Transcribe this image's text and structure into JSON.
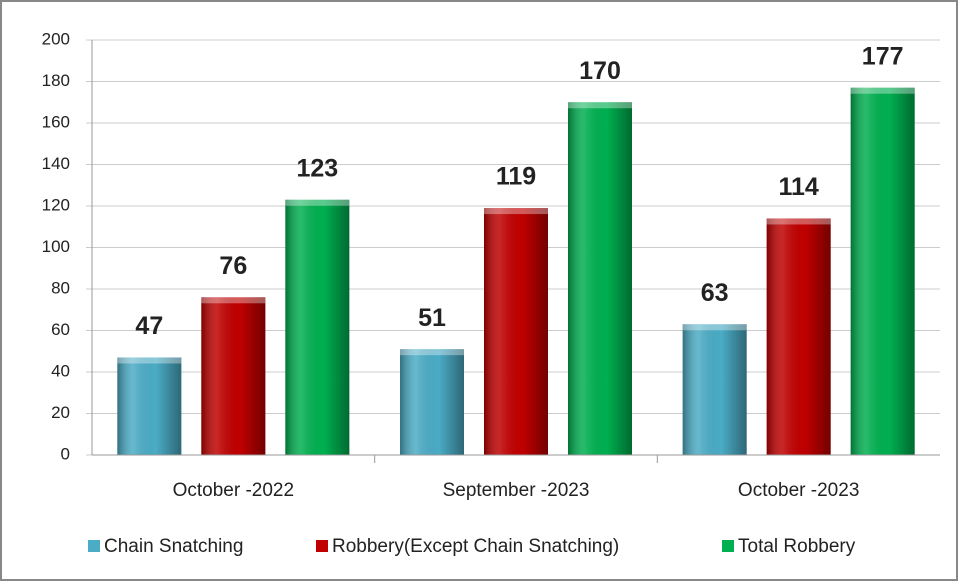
{
  "chart_data": {
    "type": "bar",
    "categories": [
      "October -2022",
      "September -2023",
      "October -2023"
    ],
    "series": [
      {
        "name": "Chain Snatching",
        "color": "#4bacc6",
        "values": [
          47,
          51,
          63
        ]
      },
      {
        "name": "Robbery(Except Chain Snatching)",
        "color": "#c00000",
        "values": [
          76,
          119,
          114
        ]
      },
      {
        "name": "Total Robbery",
        "color": "#00b050",
        "values": [
          123,
          170,
          177
        ]
      }
    ],
    "ylim": [
      0,
      200
    ],
    "yticks": [
      0,
      20,
      40,
      60,
      80,
      100,
      120,
      140,
      160,
      180,
      200
    ],
    "grid": true
  }
}
